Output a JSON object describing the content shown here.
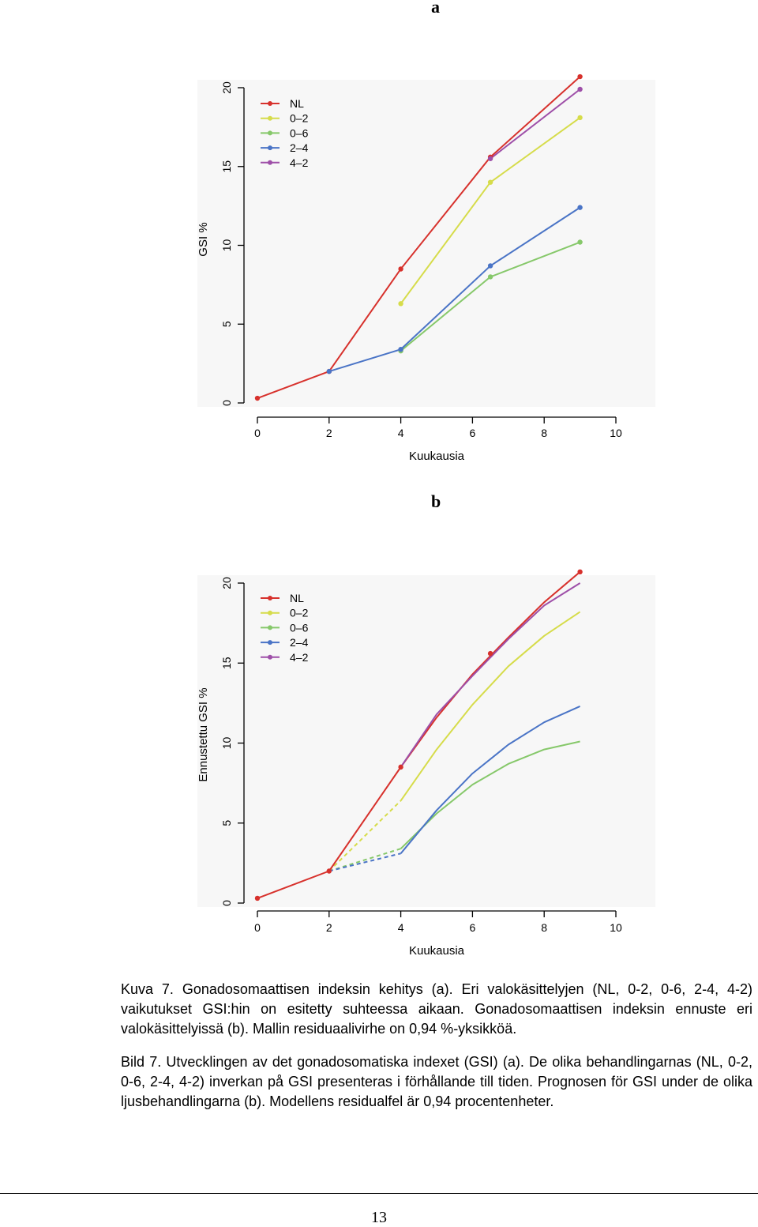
{
  "panel_labels": [
    "a",
    "b"
  ],
  "chart_data": [
    {
      "type": "line",
      "panel": "a",
      "title": "",
      "xlabel": "Kuukausia",
      "ylabel": "GSI %",
      "xlim": [
        0,
        10
      ],
      "ylim": [
        0,
        20
      ],
      "xticks": [
        0,
        2,
        4,
        6,
        8,
        10
      ],
      "yticks": [
        0,
        5,
        10,
        15,
        20
      ],
      "legend": "top-left",
      "series": [
        {
          "name": "NL",
          "color": "#d7312c",
          "dash": false,
          "x": [
            0,
            2,
            4,
            6.5,
            9
          ],
          "y": [
            0.3,
            2.0,
            8.5,
            15.6,
            20.7
          ]
        },
        {
          "name": "0–2",
          "color": "#d6dc4a",
          "dash": false,
          "x": [
            4,
            6.5,
            9
          ],
          "y": [
            6.3,
            14.0,
            18.1
          ]
        },
        {
          "name": "0–6",
          "color": "#86c86a",
          "dash": false,
          "x": [
            4,
            6.5,
            9
          ],
          "y": [
            3.3,
            8.0,
            10.2
          ]
        },
        {
          "name": "2–4",
          "color": "#4a74c6",
          "dash": false,
          "x": [
            2,
            4,
            6.5,
            9
          ],
          "y": [
            2.0,
            3.4,
            8.7,
            12.4
          ]
        },
        {
          "name": "4–2",
          "color": "#9e4fa8",
          "dash": false,
          "x": [
            6.5,
            9
          ],
          "y": [
            15.5,
            19.9
          ]
        }
      ]
    },
    {
      "type": "line",
      "panel": "b",
      "title": "",
      "xlabel": "Kuukausia",
      "ylabel": "Ennustettu GSI %",
      "xlim": [
        0,
        10
      ],
      "ylim": [
        0,
        20
      ],
      "xticks": [
        0,
        2,
        4,
        6,
        8,
        10
      ],
      "yticks": [
        0,
        5,
        10,
        15,
        20
      ],
      "legend": "top-left",
      "points": [
        {
          "x": 0,
          "y": 0.3,
          "color": "#d7312c"
        },
        {
          "x": 2,
          "y": 2.0,
          "color": "#d7312c"
        },
        {
          "x": 4,
          "y": 8.5,
          "color": "#d7312c"
        },
        {
          "x": 6.5,
          "y": 15.6,
          "color": "#d7312c"
        },
        {
          "x": 9,
          "y": 20.7,
          "color": "#d7312c"
        }
      ],
      "series": [
        {
          "name": "NL",
          "color": "#d7312c",
          "x": [
            0,
            2,
            4,
            5,
            6,
            7,
            8,
            9
          ],
          "y": [
            0.3,
            2.0,
            8.5,
            11.6,
            14.3,
            16.6,
            18.8,
            20.7
          ]
        },
        {
          "name": "0–2",
          "color": "#d6dc4a",
          "x": [
            4,
            5,
            6,
            7,
            8,
            9
          ],
          "y": [
            6.4,
            9.6,
            12.4,
            14.8,
            16.7,
            18.2
          ]
        },
        {
          "name": "0–6",
          "color": "#86c86a",
          "x": [
            4,
            5,
            6,
            7,
            8,
            9
          ],
          "y": [
            3.4,
            5.6,
            7.4,
            8.7,
            9.6,
            10.1
          ]
        },
        {
          "name": "2–4",
          "color": "#4a74c6",
          "x": [
            4,
            5,
            6,
            7,
            8,
            9
          ],
          "y": [
            3.1,
            5.8,
            8.1,
            9.9,
            11.3,
            12.3
          ]
        },
        {
          "name": "4–2",
          "color": "#9e4fa8",
          "x": [
            4,
            5,
            6,
            7,
            8,
            9
          ],
          "y": [
            8.5,
            11.8,
            14.2,
            16.5,
            18.6,
            20.0
          ]
        }
      ],
      "dashed_segments": [
        {
          "color": "#d6dc4a",
          "x": [
            2,
            4
          ],
          "y": [
            2.0,
            6.4
          ]
        },
        {
          "color": "#86c86a",
          "x": [
            2,
            4
          ],
          "y": [
            2.0,
            3.4
          ]
        },
        {
          "color": "#4a74c6",
          "x": [
            2,
            4
          ],
          "y": [
            2.0,
            3.1
          ]
        }
      ]
    }
  ],
  "caption": {
    "fi": "Kuva 7. Gonadosomaattisen indeksin kehitys (a). Eri valokäsittelyjen (NL, 0-2, 0-6, 2-4, 4-2) vaikutukset GSI:hin on esitetty suhteessa aikaan. Gonadosomaattisen indeksin ennuste eri valokäsittelyissä (b). Mallin residuaalivirhe on 0,94 %-yksikköä.",
    "sv": "Bild 7. Utvecklingen av det gonadosomatiska indexet (GSI) (a). De olika behandlingarnas (NL, 0-2, 0-6, 2-4, 4-2) inverkan på GSI presenteras i förhållande till tiden. Prognosen för GSI under de olika ljusbehandlingarna (b). Modellens residualfel är 0,94 procentenheter."
  },
  "page_number": "13"
}
